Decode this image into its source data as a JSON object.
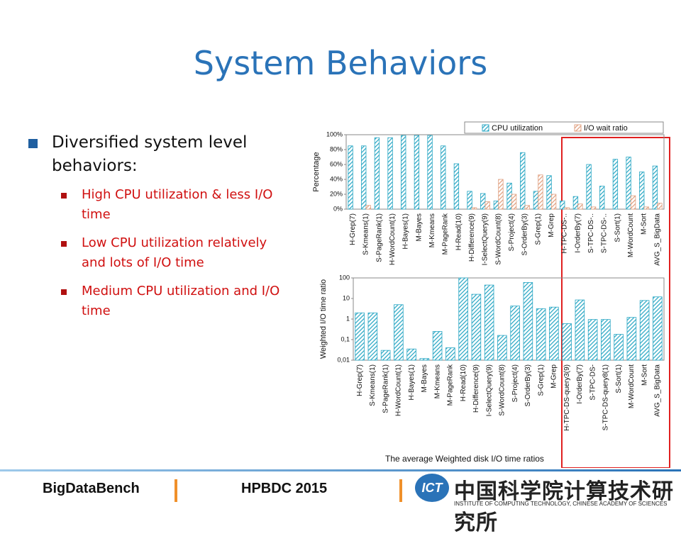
{
  "title": "System Behaviors",
  "bullets": [
    {
      "text": "Diversified system level behaviors:",
      "items": [
        "High CPU utilization & less I/O time",
        "Low CPU utilization relatively and lots of I/O time",
        "Medium CPU utilization and I/O time"
      ]
    }
  ],
  "caption": "The average Weighted disk I/O time ratios",
  "footer": {
    "left": "BigDataBench",
    "center": "HPBDC 2015",
    "logo_mark": "ICT",
    "logo_cn": "中国科学院计算技术研究所",
    "logo_en": "INSTITUTE OF COMPUTING TECHNOLOGY, CHINESE ACADEMY OF SCIENCES"
  },
  "chart_data": [
    {
      "type": "bar",
      "y_label": "Percentage",
      "categories": [
        "H-Grep(7)",
        "S-Kmeans(1)",
        "S-PageRank(1)",
        "H-WordCount(1)",
        "H-Bayes(1)",
        "M-Bayes",
        "M-Kmeans",
        "M-PageRank",
        "H-Read(10)",
        "H-Difference(9)",
        "I-SelectQuery(9)",
        "S-WordCount(8)",
        "S-Project(4)",
        "S-OrderBy(3)",
        "S-Grep(1)",
        "M-Grep",
        "H-TPC-DS-..",
        "I-OrderBy(7)",
        "S-TPC-DS-..",
        "S-TPC-DS-..",
        "S-Sort(1)",
        "M-WordCount",
        "M-Sort",
        "AVG_S_BigData"
      ],
      "series": [
        {
          "name": "CPU utilization",
          "color": "#2aa7c4",
          "values": [
            85,
            85,
            96,
            96,
            99,
            99,
            99,
            85,
            61,
            24,
            21,
            11,
            35,
            76,
            24,
            45,
            11,
            17,
            60,
            31,
            67,
            70,
            50,
            58
          ]
        },
        {
          "name": "I/O wait ratio",
          "color": "#e0a080",
          "values": [
            0,
            5,
            0,
            0,
            0,
            0,
            0,
            0,
            0,
            2,
            10,
            40,
            20,
            5,
            46,
            20,
            2,
            7,
            3,
            0,
            0,
            18,
            3,
            8
          ]
        }
      ],
      "ylim": [
        0,
        100
      ],
      "yticks": [
        {
          "value": 0,
          "label": "0%"
        },
        {
          "value": 20,
          "label": "20%"
        },
        {
          "value": 40,
          "label": "40%"
        },
        {
          "value": 60,
          "label": "60%"
        },
        {
          "value": 80,
          "label": "80%"
        },
        {
          "value": 100,
          "label": "100%"
        }
      ],
      "log": false,
      "legend": "top"
    },
    {
      "type": "bar",
      "y_label": "Weighted I/O time ratio",
      "categories": [
        "H-Grep(7)",
        "S-Kmeans(1)",
        "S-PageRank(1)",
        "H-WordCount(1)",
        "H-Bayes(1)",
        "M-Bayes",
        "M-Kmeans",
        "M-PageRank",
        "H-Read(10)",
        "H-Difference(9)",
        "I-SelectQuery(9)",
        "S-WordCount(8)",
        "S-Project(4)",
        "S-OrderBy(3)",
        "S-Grep(1)",
        "M-Grep",
        "H-TPC-DS-query3(9)",
        "I-OrderBy(7)",
        "S-TPC-DS-",
        "S-TPC-DS-query8(1)",
        "S-Sort(1)",
        "M-WordCount",
        "M-Sort",
        "AVG_S_BigData"
      ],
      "series": [
        {
          "color": "#2aa7c4",
          "values": [
            2,
            2,
            0.03,
            5,
            0.035,
            0.012,
            0.25,
            0.04,
            100,
            16,
            45,
            0.16,
            4.3,
            60,
            3.2,
            3.8,
            0.6,
            8.5,
            0.95,
            0.95,
            0.18,
            1.2,
            8,
            12
          ]
        }
      ],
      "ylim": [
        0.01,
        100
      ],
      "yticks": [
        {
          "value": 0.01,
          "label": "0,01"
        },
        {
          "value": 0.1,
          "label": "0,1"
        },
        1,
        10,
        100
      ],
      "log": true
    }
  ]
}
